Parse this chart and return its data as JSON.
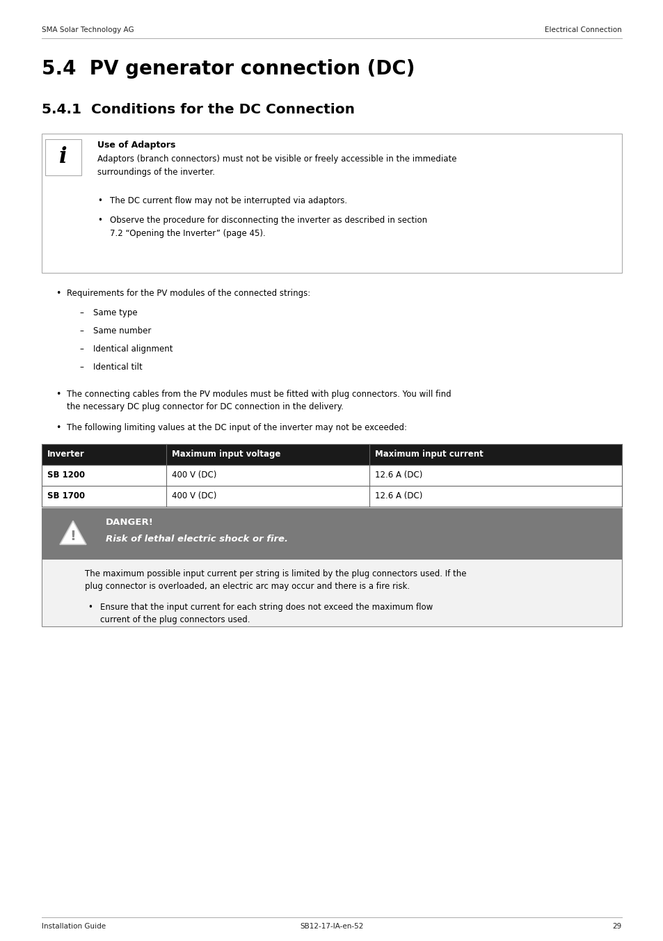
{
  "page_width": 9.54,
  "page_height": 13.52,
  "bg_color": "#ffffff",
  "header_left": "SMA Solar Technology AG",
  "header_right": "Electrical Connection",
  "footer_left": "Installation Guide",
  "footer_right": "SB12-17-IA-en-52",
  "footer_page": "29",
  "title_54": "5.4  PV generator connection (DC)",
  "title_541": "5.4.1  Conditions for the DC Connection",
  "info_box_title": "Use of Adaptors",
  "info_box_body1": "Adaptors (branch connectors) must not be visible or freely accessible in the immediate\nsurroundings of the inverter.",
  "info_bullet1": "The DC current flow may not be interrupted via adaptors.",
  "info_bullet2": "Observe the procedure for disconnecting the inverter as described in section\n7.2 “Opening the Inverter” (page 45).",
  "bullet1": "Requirements for the PV modules of the connected strings:",
  "sub_bullets1": [
    "Same type",
    "Same number",
    "Identical alignment",
    "Identical tilt"
  ],
  "bullet2_line1": "The connecting cables from the PV modules must be fitted with plug connectors. You will find",
  "bullet2_line2": "the necessary DC plug connector for DC connection in the delivery.",
  "bullet3": "The following limiting values at the DC input of the inverter may not be exceeded:",
  "table_headers": [
    "Inverter",
    "Maximum input voltage",
    "Maximum input current"
  ],
  "table_row1": [
    "SB 1200",
    "400 V (DC)",
    "12.6 A (DC)"
  ],
  "table_row2": [
    "SB 1700",
    "400 V (DC)",
    "12.6 A (DC)"
  ],
  "danger_title": "DANGER!",
  "danger_subtitle": "Risk of lethal electric shock or fire.",
  "danger_body_line1": "The maximum possible input current per string is limited by the plug connectors used. If the",
  "danger_body_line2": "plug connector is overloaded, an electric arc may occur and there is a fire risk.",
  "danger_bullet_line1": "Ensure that the input current for each string does not exceed the maximum flow",
  "danger_bullet_line2": "current of the plug connectors used.",
  "danger_bg": "#7a7a7a",
  "danger_box_bg": "#f2f2f2",
  "text_color": "#000000"
}
